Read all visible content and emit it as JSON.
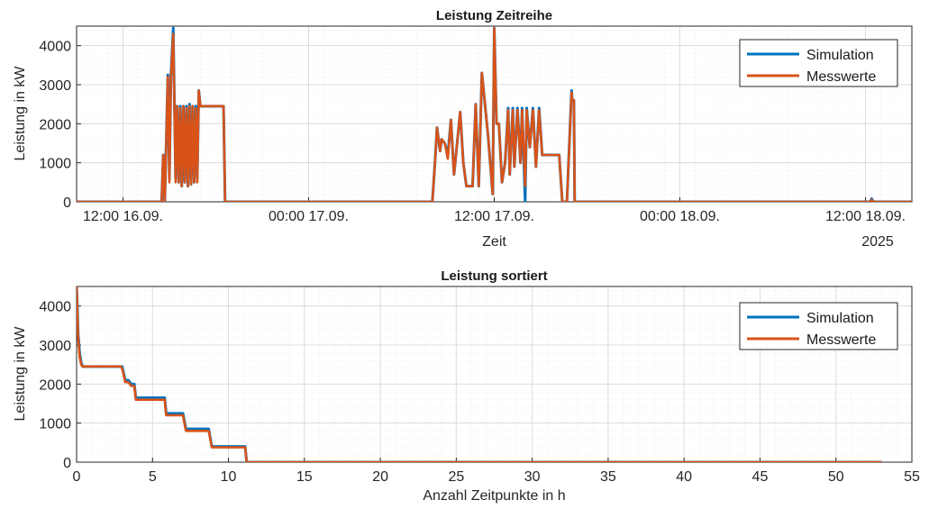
{
  "colors": {
    "simulation": "#0072bd",
    "messwerte": "#d95319",
    "grid": "#dcdcdc",
    "axis": "#262626"
  },
  "chart_data": [
    {
      "type": "line",
      "title": "Leistung Zeitreihe",
      "xlabel": "Zeit",
      "ylabel": "Leistung in kW",
      "x_unit": "hours since 2025-09-16 09:00",
      "xlim": [
        0,
        54
      ],
      "ylim": [
        0,
        4500
      ],
      "yticks": [
        0,
        1000,
        2000,
        3000,
        4000
      ],
      "xticks": [
        {
          "value": 3,
          "label": "12:00 16.09."
        },
        {
          "value": 15,
          "label": "00:00 17.09."
        },
        {
          "value": 27,
          "label": "12:00 17.09."
        },
        {
          "value": 39,
          "label": "00:00 18.09."
        },
        {
          "value": 51,
          "label": "12:00 18.09."
        }
      ],
      "year_label": "2025",
      "grid": true,
      "legend": {
        "location": "top-right",
        "entries": [
          "Simulation",
          "Messwerte"
        ]
      },
      "series": [
        {
          "name": "Simulation",
          "x": [
            0,
            5.5,
            5.6,
            5.7,
            5.9,
            6.0,
            6.1,
            6.25,
            6.4,
            6.5,
            6.6,
            6.7,
            6.8,
            6.9,
            7.0,
            7.1,
            7.2,
            7.3,
            7.4,
            7.5,
            7.6,
            7.7,
            7.8,
            7.9,
            8.0,
            8.1,
            8.2,
            8.3,
            8.4,
            8.5,
            8.6,
            8.7,
            8.8,
            8.9,
            9.0,
            9.5,
            9.6,
            23.0,
            23.2,
            23.3,
            23.5,
            23.6,
            23.8,
            24.0,
            24.2,
            24.4,
            24.6,
            24.8,
            25.0,
            25.2,
            25.6,
            25.8,
            26.0,
            26.2,
            26.6,
            26.9,
            27.0,
            27.15,
            27.3,
            27.5,
            27.7,
            27.9,
            28.0,
            28.2,
            28.3,
            28.5,
            28.7,
            28.8,
            29.0,
            29.1,
            29.3,
            29.5,
            29.7,
            29.9,
            30.1,
            30.3,
            30.5,
            30.7,
            30.9,
            31.2,
            31.4,
            31.6,
            31.7,
            32.0,
            32.05,
            32.15,
            32.2,
            51.3,
            51.4,
            51.5,
            54
          ],
          "y": [
            0,
            0,
            1200,
            0,
            3250,
            600,
            3250,
            4450,
            600,
            2450,
            500,
            2450,
            400,
            2450,
            500,
            2450,
            400,
            2500,
            450,
            2450,
            500,
            2450,
            600,
            2850,
            2450,
            2450,
            2450,
            2450,
            2450,
            2450,
            2450,
            2450,
            2450,
            2450,
            2450,
            2450,
            0,
            0,
            1200,
            1900,
            1300,
            1600,
            1500,
            1200,
            2100,
            700,
            1500,
            2300,
            1000,
            400,
            400,
            2500,
            400,
            3300,
            1700,
            200,
            4450,
            2000,
            2000,
            500,
            1000,
            2400,
            700,
            2400,
            900,
            2400,
            1000,
            2400,
            0,
            2400,
            1400,
            2400,
            900,
            2400,
            1200,
            1200,
            1200,
            1200,
            1200,
            1200,
            0,
            0,
            0,
            2850,
            2600,
            2600,
            0,
            0,
            80,
            0,
            0
          ]
        },
        {
          "name": "Messwerte",
          "x": [
            0,
            5.5,
            5.6,
            5.7,
            5.9,
            6.0,
            6.1,
            6.25,
            6.4,
            6.5,
            6.6,
            6.7,
            6.8,
            6.9,
            7.0,
            7.1,
            7.2,
            7.3,
            7.4,
            7.5,
            7.6,
            7.7,
            7.8,
            7.9,
            8.0,
            8.1,
            8.2,
            8.3,
            8.4,
            8.5,
            8.6,
            8.7,
            8.8,
            8.9,
            9.0,
            9.5,
            9.6,
            23.0,
            23.2,
            23.3,
            23.5,
            23.6,
            23.8,
            24.0,
            24.2,
            24.4,
            24.6,
            24.8,
            25.0,
            25.2,
            25.6,
            25.8,
            26.0,
            26.2,
            26.6,
            26.9,
            27.0,
            27.15,
            27.3,
            27.5,
            27.7,
            27.9,
            28.0,
            28.2,
            28.3,
            28.5,
            28.7,
            28.8,
            29.0,
            29.1,
            29.3,
            29.5,
            29.7,
            29.9,
            30.1,
            30.3,
            30.5,
            30.7,
            30.9,
            31.2,
            31.4,
            31.6,
            31.7,
            32.0,
            32.05,
            32.15,
            32.2,
            51.3,
            51.4,
            51.5,
            54
          ],
          "y": [
            0,
            0,
            1200,
            0,
            3200,
            500,
            3200,
            4300,
            500,
            2450,
            500,
            2400,
            400,
            2450,
            500,
            2400,
            400,
            2450,
            450,
            2450,
            500,
            2400,
            500,
            2850,
            2450,
            2450,
            2450,
            2450,
            2450,
            2450,
            2450,
            2450,
            2450,
            2450,
            2450,
            2450,
            0,
            0,
            1200,
            1900,
            1300,
            1600,
            1500,
            1100,
            2100,
            700,
            1500,
            2300,
            1000,
            400,
            400,
            2500,
            400,
            3300,
            1700,
            200,
            4450,
            2000,
            2000,
            500,
            1000,
            2350,
            700,
            2350,
            900,
            2350,
            1000,
            2350,
            400,
            2350,
            1400,
            2350,
            900,
            2350,
            1200,
            1200,
            1200,
            1200,
            1200,
            1200,
            0,
            0,
            0,
            2800,
            2600,
            2600,
            0,
            0,
            50,
            0,
            0
          ]
        }
      ]
    },
    {
      "type": "line",
      "title": "Leistung sortiert",
      "xlabel": "Anzahl Zeitpunkte in h",
      "ylabel": "Leistung in kW",
      "xlim": [
        0,
        55
      ],
      "ylim": [
        0,
        4500
      ],
      "xticks": [
        0,
        5,
        10,
        15,
        20,
        25,
        30,
        35,
        40,
        45,
        50,
        55
      ],
      "yticks": [
        0,
        1000,
        2000,
        3000,
        4000
      ],
      "grid": true,
      "legend": {
        "location": "top-right",
        "entries": [
          "Simulation",
          "Messwerte"
        ]
      },
      "series": [
        {
          "name": "Simulation",
          "x": [
            0,
            0.05,
            0.1,
            0.2,
            0.3,
            0.4,
            2.9,
            3.0,
            3.2,
            3.4,
            3.6,
            3.8,
            3.9,
            4.3,
            5.0,
            5.8,
            5.9,
            7.0,
            7.2,
            8.7,
            8.9,
            9.0,
            11.0,
            11.1,
            11.2,
            53
          ],
          "y": [
            4500,
            4000,
            3300,
            2800,
            2550,
            2450,
            2450,
            2450,
            2100,
            2100,
            2000,
            2000,
            1650,
            1650,
            1650,
            1650,
            1250,
            1250,
            850,
            850,
            400,
            400,
            400,
            400,
            0,
            0
          ]
        },
        {
          "name": "Messwerte",
          "x": [
            0,
            0.05,
            0.1,
            0.2,
            0.3,
            0.4,
            2.9,
            3.0,
            3.2,
            3.4,
            3.6,
            3.8,
            3.9,
            4.3,
            5.0,
            5.8,
            5.9,
            7.0,
            7.2,
            8.7,
            8.9,
            9.0,
            11.0,
            11.1,
            11.2,
            53
          ],
          "y": [
            4500,
            3900,
            3200,
            2700,
            2500,
            2450,
            2450,
            2400,
            2050,
            2050,
            1950,
            1950,
            1600,
            1600,
            1600,
            1600,
            1200,
            1200,
            800,
            800,
            380,
            380,
            380,
            380,
            0,
            0
          ]
        }
      ]
    }
  ]
}
